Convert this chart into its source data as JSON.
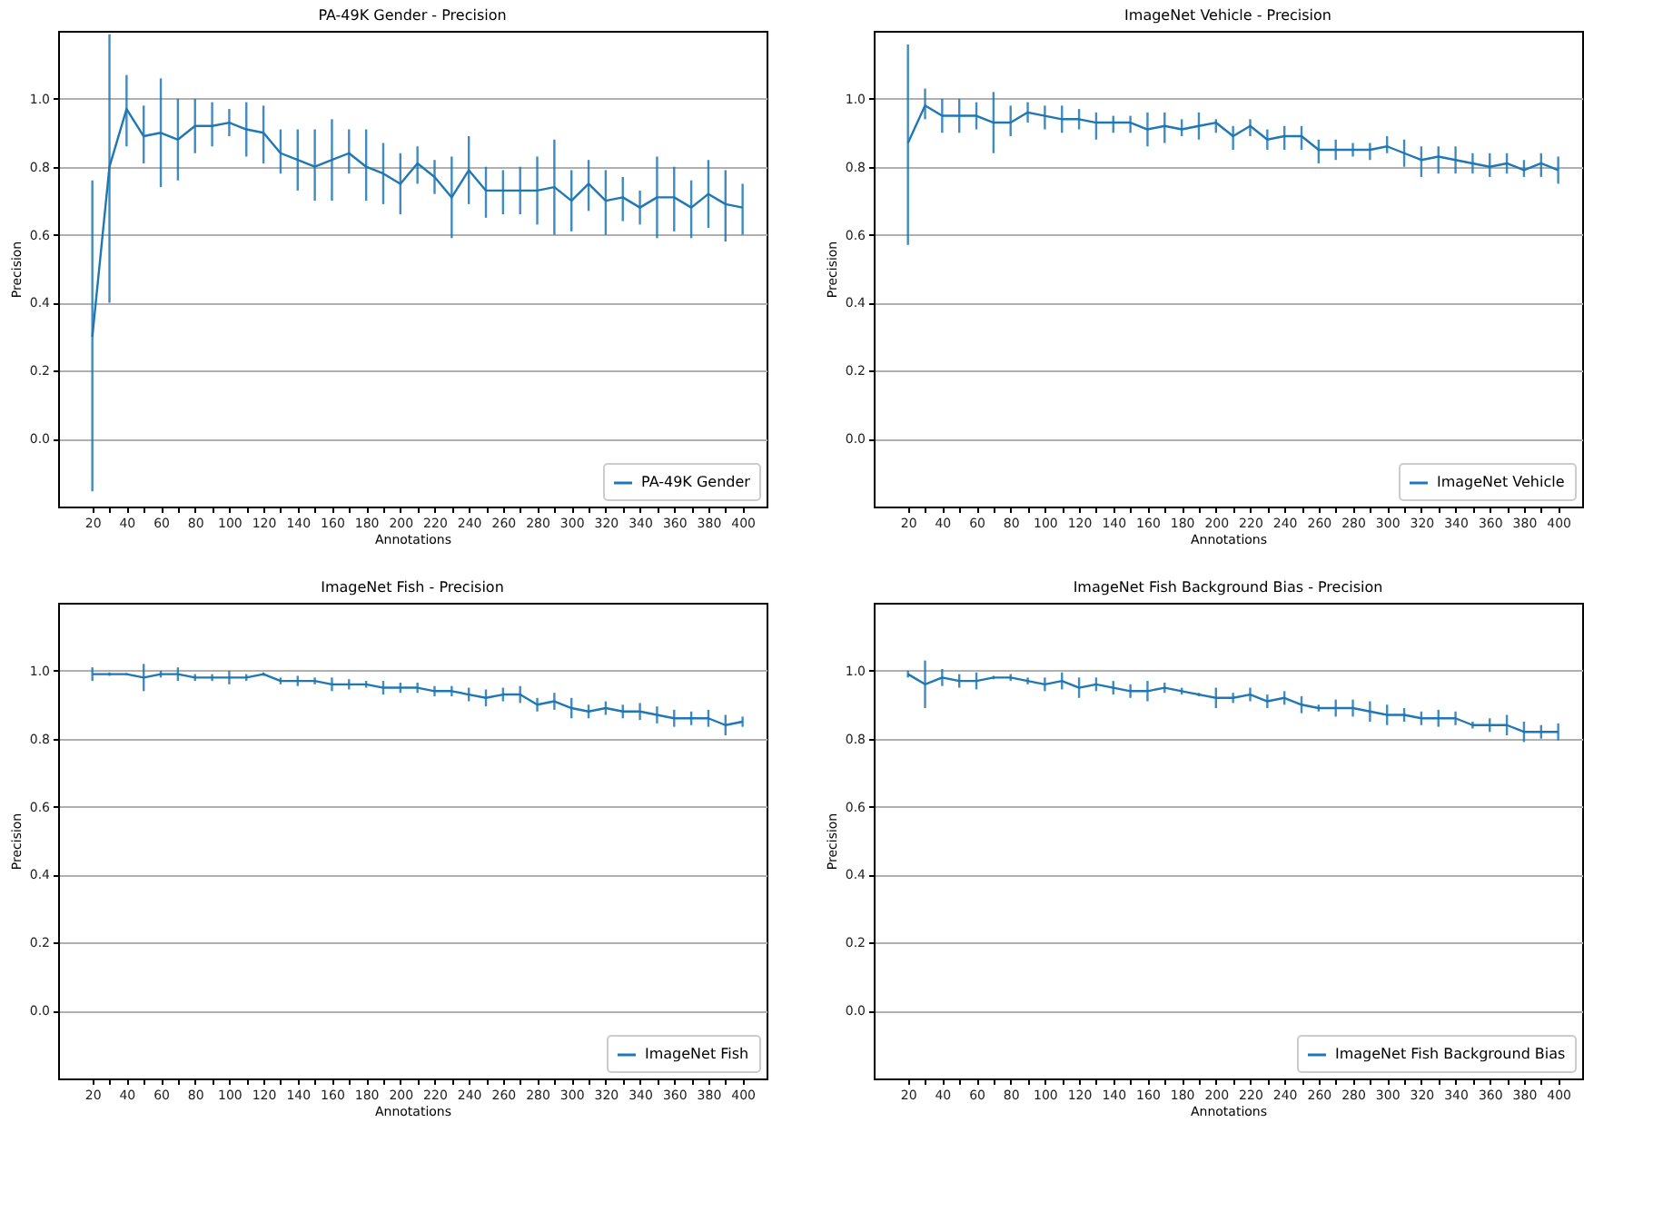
{
  "chart_data": [
    {
      "type": "line",
      "title": "PA-49K Gender - Precision",
      "xlabel": "Annotations",
      "ylabel": "Precision",
      "legend": "bottom right",
      "grid": "y",
      "x": [
        20,
        30,
        40,
        50,
        60,
        70,
        80,
        90,
        100,
        110,
        120,
        130,
        140,
        150,
        160,
        170,
        180,
        190,
        200,
        210,
        220,
        230,
        240,
        250,
        260,
        270,
        280,
        290,
        300,
        310,
        320,
        330,
        340,
        350,
        360,
        370,
        380,
        390,
        400
      ],
      "xlim": [
        0,
        414
      ],
      "xticks": [
        20,
        {
          "value": 30,
          "label": null
        },
        40,
        {
          "value": 50,
          "label": null
        },
        60,
        {
          "value": 70,
          "label": null
        },
        80,
        {
          "value": 90,
          "label": null
        },
        100,
        {
          "value": 110,
          "label": null
        },
        120,
        {
          "value": 130,
          "label": null
        },
        140,
        {
          "value": 150,
          "label": null
        },
        160,
        {
          "value": 170,
          "label": null
        },
        180,
        {
          "value": 190,
          "label": null
        },
        200,
        {
          "value": 210,
          "label": null
        },
        220,
        {
          "value": 230,
          "label": null
        },
        240,
        {
          "value": 250,
          "label": null
        },
        260,
        {
          "value": 270,
          "label": null
        },
        280,
        {
          "value": 290,
          "label": null
        },
        300,
        {
          "value": 310,
          "label": null
        },
        320,
        {
          "value": 330,
          "label": null
        },
        340,
        {
          "value": 350,
          "label": null
        },
        360,
        {
          "value": 370,
          "label": null
        },
        380,
        {
          "value": 390,
          "label": null
        },
        400
      ],
      "ylim": [
        -0.2,
        1.2
      ],
      "yticks": [
        {
          "value": 0,
          "label": "0.0"
        },
        {
          "value": 0.2,
          "label": "0.2"
        },
        {
          "value": 0.4,
          "label": "0.4"
        },
        {
          "value": 0.6,
          "label": "0.6"
        },
        {
          "value": 0.8,
          "label": "0.8"
        },
        {
          "value": 1,
          "label": "1.0"
        }
      ],
      "series": [
        {
          "name": "PA-49K Gender",
          "color": "#1f77b4",
          "values": [
            0.3,
            0.8,
            0.97,
            0.89,
            0.9,
            0.88,
            0.92,
            0.92,
            0.93,
            0.91,
            0.9,
            0.84,
            0.82,
            0.8,
            0.82,
            0.84,
            0.8,
            0.78,
            0.75,
            0.81,
            0.77,
            0.71,
            0.79,
            0.73,
            0.73,
            0.73,
            0.73,
            0.74,
            0.7,
            0.75,
            0.7,
            0.71,
            0.68,
            0.71,
            0.71,
            0.68,
            0.72,
            0.69,
            0.68
          ],
          "errors": [
            [
              -0.155,
              0.76
            ],
            [
              0.4,
              1.19
            ],
            [
              0.86,
              1.07
            ],
            [
              0.81,
              0.98
            ],
            [
              0.74,
              1.06
            ],
            [
              0.76,
              1.0
            ],
            [
              0.84,
              1.0
            ],
            [
              0.86,
              0.99
            ],
            [
              0.89,
              0.97
            ],
            [
              0.83,
              0.99
            ],
            [
              0.81,
              0.98
            ],
            [
              0.78,
              0.91
            ],
            [
              0.73,
              0.91
            ],
            [
              0.7,
              0.91
            ],
            [
              0.7,
              0.94
            ],
            [
              0.78,
              0.91
            ],
            [
              0.7,
              0.91
            ],
            [
              0.69,
              0.87
            ],
            [
              0.66,
              0.84
            ],
            [
              0.75,
              0.86
            ],
            [
              0.72,
              0.82
            ],
            [
              0.59,
              0.83
            ],
            [
              0.69,
              0.89
            ],
            [
              0.65,
              0.8
            ],
            [
              0.66,
              0.79
            ],
            [
              0.66,
              0.8
            ],
            [
              0.63,
              0.83
            ],
            [
              0.6,
              0.88
            ],
            [
              0.61,
              0.79
            ],
            [
              0.67,
              0.82
            ],
            [
              0.6,
              0.79
            ],
            [
              0.64,
              0.77
            ],
            [
              0.63,
              0.73
            ],
            [
              0.59,
              0.83
            ],
            [
              0.61,
              0.8
            ],
            [
              0.59,
              0.76
            ],
            [
              0.62,
              0.82
            ],
            [
              0.58,
              0.79
            ],
            [
              0.6,
              0.75
            ]
          ]
        }
      ]
    },
    {
      "type": "line",
      "title": "ImageNet Vehicle - Precision",
      "xlabel": "Annotations",
      "ylabel": "Precision",
      "legend": "bottom right",
      "grid": "y",
      "x": [
        20,
        30,
        40,
        50,
        60,
        70,
        80,
        90,
        100,
        110,
        120,
        130,
        140,
        150,
        160,
        170,
        180,
        190,
        200,
        210,
        220,
        230,
        240,
        250,
        260,
        270,
        280,
        290,
        300,
        310,
        320,
        330,
        340,
        350,
        360,
        370,
        380,
        390,
        400
      ],
      "xlim": [
        0,
        414
      ],
      "xticks": [
        20,
        {
          "value": 30,
          "label": null
        },
        40,
        {
          "value": 50,
          "label": null
        },
        60,
        {
          "value": 70,
          "label": null
        },
        80,
        {
          "value": 90,
          "label": null
        },
        100,
        {
          "value": 110,
          "label": null
        },
        120,
        {
          "value": 130,
          "label": null
        },
        140,
        {
          "value": 150,
          "label": null
        },
        160,
        {
          "value": 170,
          "label": null
        },
        180,
        {
          "value": 190,
          "label": null
        },
        200,
        {
          "value": 210,
          "label": null
        },
        220,
        {
          "value": 230,
          "label": null
        },
        240,
        {
          "value": 250,
          "label": null
        },
        260,
        {
          "value": 270,
          "label": null
        },
        280,
        {
          "value": 290,
          "label": null
        },
        300,
        {
          "value": 310,
          "label": null
        },
        320,
        {
          "value": 330,
          "label": null
        },
        340,
        {
          "value": 350,
          "label": null
        },
        360,
        {
          "value": 370,
          "label": null
        },
        380,
        {
          "value": 390,
          "label": null
        },
        400
      ],
      "ylim": [
        -0.2,
        1.2
      ],
      "yticks": [
        {
          "value": 0,
          "label": "0.0"
        },
        {
          "value": 0.2,
          "label": "0.2"
        },
        {
          "value": 0.4,
          "label": "0.4"
        },
        {
          "value": 0.6,
          "label": "0.6"
        },
        {
          "value": 0.8,
          "label": "0.8"
        },
        {
          "value": 1,
          "label": "1.0"
        }
      ],
      "series": [
        {
          "name": "ImageNet Vehicle",
          "color": "#1f77b4",
          "values": [
            0.87,
            0.98,
            0.95,
            0.95,
            0.95,
            0.93,
            0.93,
            0.96,
            0.95,
            0.94,
            0.94,
            0.93,
            0.93,
            0.93,
            0.91,
            0.92,
            0.91,
            0.92,
            0.93,
            0.89,
            0.92,
            0.88,
            0.89,
            0.89,
            0.85,
            0.85,
            0.85,
            0.85,
            0.86,
            0.84,
            0.82,
            0.83,
            0.82,
            0.81,
            0.8,
            0.81,
            0.79,
            0.81,
            0.79
          ],
          "errors": [
            [
              0.57,
              1.16
            ],
            [
              0.94,
              1.03
            ],
            [
              0.9,
              1.0
            ],
            [
              0.9,
              1.0
            ],
            [
              0.91,
              0.99
            ],
            [
              0.84,
              1.02
            ],
            [
              0.89,
              0.98
            ],
            [
              0.93,
              0.99
            ],
            [
              0.91,
              0.98
            ],
            [
              0.9,
              0.98
            ],
            [
              0.91,
              0.97
            ],
            [
              0.88,
              0.96
            ],
            [
              0.9,
              0.95
            ],
            [
              0.9,
              0.95
            ],
            [
              0.86,
              0.96
            ],
            [
              0.87,
              0.96
            ],
            [
              0.89,
              0.94
            ],
            [
              0.88,
              0.96
            ],
            [
              0.9,
              0.94
            ],
            [
              0.85,
              0.92
            ],
            [
              0.89,
              0.94
            ],
            [
              0.85,
              0.91
            ],
            [
              0.85,
              0.92
            ],
            [
              0.85,
              0.92
            ],
            [
              0.81,
              0.88
            ],
            [
              0.82,
              0.88
            ],
            [
              0.83,
              0.87
            ],
            [
              0.82,
              0.87
            ],
            [
              0.84,
              0.89
            ],
            [
              0.8,
              0.88
            ],
            [
              0.77,
              0.86
            ],
            [
              0.78,
              0.86
            ],
            [
              0.78,
              0.86
            ],
            [
              0.78,
              0.84
            ],
            [
              0.77,
              0.84
            ],
            [
              0.78,
              0.84
            ],
            [
              0.77,
              0.82
            ],
            [
              0.77,
              0.84
            ],
            [
              0.75,
              0.83
            ]
          ]
        }
      ]
    },
    {
      "type": "line",
      "title": "ImageNet Fish - Precision",
      "xlabel": "Annotations",
      "ylabel": "Precision",
      "legend": "bottom right",
      "grid": "y",
      "x": [
        20,
        30,
        40,
        50,
        60,
        70,
        80,
        90,
        100,
        110,
        120,
        130,
        140,
        150,
        160,
        170,
        180,
        190,
        200,
        210,
        220,
        230,
        240,
        250,
        260,
        270,
        280,
        290,
        300,
        310,
        320,
        330,
        340,
        350,
        360,
        370,
        380,
        390,
        400
      ],
      "xlim": [
        0,
        414
      ],
      "xticks": [
        20,
        {
          "value": 30,
          "label": null
        },
        40,
        {
          "value": 50,
          "label": null
        },
        60,
        {
          "value": 70,
          "label": null
        },
        80,
        {
          "value": 90,
          "label": null
        },
        100,
        {
          "value": 110,
          "label": null
        },
        120,
        {
          "value": 130,
          "label": null
        },
        140,
        {
          "value": 150,
          "label": null
        },
        160,
        {
          "value": 170,
          "label": null
        },
        180,
        {
          "value": 190,
          "label": null
        },
        200,
        {
          "value": 210,
          "label": null
        },
        220,
        {
          "value": 230,
          "label": null
        },
        240,
        {
          "value": 250,
          "label": null
        },
        260,
        {
          "value": 270,
          "label": null
        },
        280,
        {
          "value": 290,
          "label": null
        },
        300,
        {
          "value": 310,
          "label": null
        },
        320,
        {
          "value": 330,
          "label": null
        },
        340,
        {
          "value": 350,
          "label": null
        },
        360,
        {
          "value": 370,
          "label": null
        },
        380,
        {
          "value": 390,
          "label": null
        },
        400
      ],
      "ylim": [
        -0.2,
        1.2
      ],
      "yticks": [
        {
          "value": 0,
          "label": "0.0"
        },
        {
          "value": 0.2,
          "label": "0.2"
        },
        {
          "value": 0.4,
          "label": "0.4"
        },
        {
          "value": 0.6,
          "label": "0.6"
        },
        {
          "value": 0.8,
          "label": "0.8"
        },
        {
          "value": 1,
          "label": "1.0"
        }
      ],
      "series": [
        {
          "name": "ImageNet Fish",
          "color": "#1f77b4",
          "values": [
            0.99,
            0.99,
            0.99,
            0.98,
            0.99,
            0.99,
            0.98,
            0.98,
            0.98,
            0.98,
            0.99,
            0.97,
            0.97,
            0.97,
            0.96,
            0.96,
            0.96,
            0.95,
            0.95,
            0.95,
            0.94,
            0.94,
            0.93,
            0.92,
            0.93,
            0.93,
            0.9,
            0.91,
            0.89,
            0.88,
            0.89,
            0.88,
            0.88,
            0.87,
            0.86,
            0.86,
            0.86,
            0.84,
            0.85
          ],
          "errors": [
            0.02,
            0.005,
            0.003,
            0.04,
            0.01,
            0.02,
            0.01,
            0.01,
            0.02,
            0.01,
            0.005,
            0.01,
            0.015,
            0.01,
            0.02,
            0.015,
            0.01,
            0.02,
            0.015,
            0.015,
            0.015,
            0.015,
            0.02,
            0.025,
            0.02,
            0.025,
            0.02,
            0.025,
            0.03,
            0.02,
            0.02,
            0.02,
            0.025,
            0.025,
            0.025,
            0.02,
            0.025,
            0.03,
            0.015
          ]
        }
      ]
    },
    {
      "type": "line",
      "title": "ImageNet Fish Background Bias - Precision",
      "xlabel": "Annotations",
      "ylabel": "Precision",
      "legend": "bottom right",
      "grid": "y",
      "x": [
        20,
        30,
        40,
        50,
        60,
        70,
        80,
        90,
        100,
        110,
        120,
        130,
        140,
        150,
        160,
        170,
        180,
        190,
        200,
        210,
        220,
        230,
        240,
        250,
        260,
        270,
        280,
        290,
        300,
        310,
        320,
        330,
        340,
        350,
        360,
        370,
        380,
        390,
        400
      ],
      "xlim": [
        0,
        414
      ],
      "xticks": [
        20,
        {
          "value": 30,
          "label": null
        },
        40,
        {
          "value": 50,
          "label": null
        },
        60,
        {
          "value": 70,
          "label": null
        },
        80,
        {
          "value": 90,
          "label": null
        },
        100,
        {
          "value": 110,
          "label": null
        },
        120,
        {
          "value": 130,
          "label": null
        },
        140,
        {
          "value": 150,
          "label": null
        },
        160,
        {
          "value": 170,
          "label": null
        },
        180,
        {
          "value": 190,
          "label": null
        },
        200,
        {
          "value": 210,
          "label": null
        },
        220,
        {
          "value": 230,
          "label": null
        },
        240,
        {
          "value": 250,
          "label": null
        },
        260,
        {
          "value": 270,
          "label": null
        },
        280,
        {
          "value": 290,
          "label": null
        },
        300,
        {
          "value": 310,
          "label": null
        },
        320,
        {
          "value": 330,
          "label": null
        },
        340,
        {
          "value": 350,
          "label": null
        },
        360,
        {
          "value": 370,
          "label": null
        },
        380,
        {
          "value": 390,
          "label": null
        },
        400
      ],
      "ylim": [
        -0.2,
        1.2
      ],
      "yticks": [
        {
          "value": 0,
          "label": "0.0"
        },
        {
          "value": 0.2,
          "label": "0.2"
        },
        {
          "value": 0.4,
          "label": "0.4"
        },
        {
          "value": 0.6,
          "label": "0.6"
        },
        {
          "value": 0.8,
          "label": "0.8"
        },
        {
          "value": 1,
          "label": "1.0"
        }
      ],
      "series": [
        {
          "name": "ImageNet Fish Background Bias",
          "color": "#1f77b4",
          "values": [
            0.99,
            0.96,
            0.98,
            0.97,
            0.97,
            0.98,
            0.98,
            0.97,
            0.96,
            0.97,
            0.95,
            0.96,
            0.95,
            0.94,
            0.94,
            0.95,
            0.94,
            0.93,
            0.92,
            0.92,
            0.93,
            0.91,
            0.92,
            0.9,
            0.89,
            0.89,
            0.89,
            0.88,
            0.87,
            0.87,
            0.86,
            0.86,
            0.86,
            0.84,
            0.84,
            0.84,
            0.82,
            0.82,
            0.82
          ],
          "errors": [
            0.01,
            0.07,
            0.025,
            0.02,
            0.025,
            0.005,
            0.01,
            0.01,
            0.02,
            0.025,
            0.03,
            0.02,
            0.02,
            0.02,
            0.03,
            0.015,
            0.01,
            0.005,
            0.03,
            0.015,
            0.02,
            0.02,
            0.02,
            0.025,
            0.01,
            0.025,
            0.025,
            0.03,
            0.03,
            0.02,
            0.02,
            0.025,
            0.02,
            0.01,
            0.02,
            0.03,
            0.03,
            0.02,
            0.025
          ]
        }
      ]
    }
  ]
}
